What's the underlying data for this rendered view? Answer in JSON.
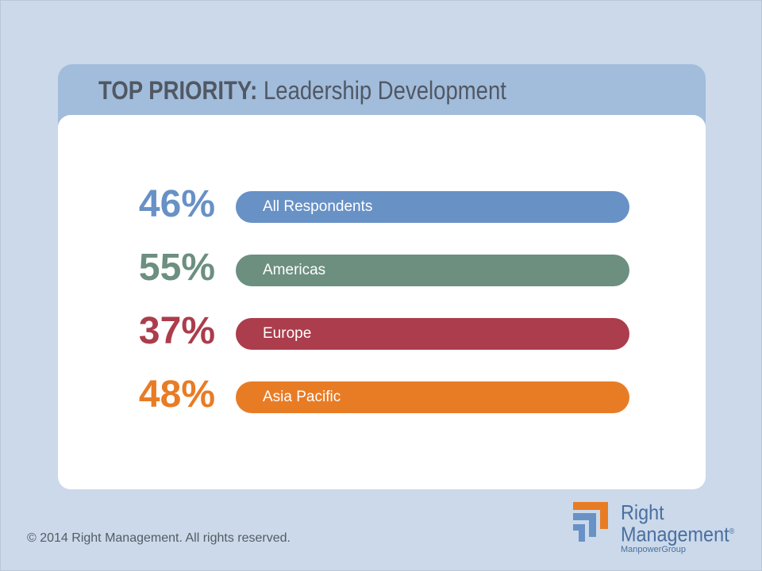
{
  "header": {
    "title_bold": "TOP PRIORITY:",
    "title_rest": " Leadership Development"
  },
  "chart_data": {
    "type": "bar",
    "title": "TOP PRIORITY: Leadership Development",
    "categories": [
      "All Respondents",
      "Americas",
      "Europe",
      "Asia Pacific"
    ],
    "values": [
      46,
      55,
      37,
      48
    ],
    "value_labels": [
      "46%",
      "55%",
      "37%",
      "48%"
    ],
    "colors": [
      "#6891c6",
      "#6c8f80",
      "#ab3d4c",
      "#e87c25"
    ],
    "xlabel": "",
    "ylabel": "",
    "grid": false
  },
  "footer": {
    "copyright": "© 2014 Right Management. All rights reserved."
  },
  "logo": {
    "line1": "Right",
    "line2": "Management",
    "registered": "®",
    "sub": "ManpowerGroup"
  }
}
